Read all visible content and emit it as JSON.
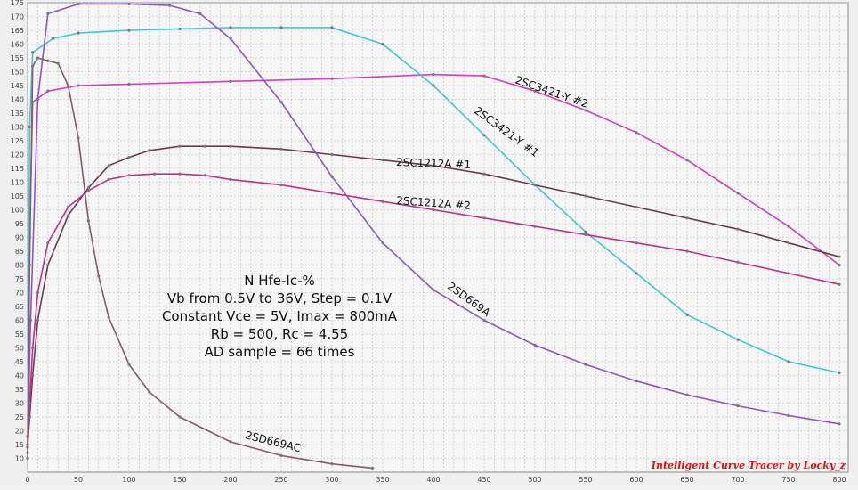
{
  "chart_data": {
    "type": "line",
    "title": "",
    "xlabel": "",
    "ylabel": "",
    "xlim": [
      0,
      800
    ],
    "ylim": [
      5,
      175
    ],
    "x_ticks": [
      0,
      50,
      100,
      150,
      200,
      250,
      300,
      350,
      400,
      450,
      500,
      550,
      600,
      650,
      700,
      750,
      800
    ],
    "y_ticks": [
      10,
      15,
      20,
      25,
      30,
      35,
      40,
      45,
      50,
      55,
      60,
      65,
      70,
      75,
      80,
      85,
      90,
      95,
      100,
      105,
      110,
      115,
      120,
      125,
      130,
      135,
      140,
      145,
      150,
      155,
      160,
      165,
      170,
      175
    ],
    "grid": true,
    "annotation_lines": [
      "N Hfe-Ic-%",
      "Vb from 0.5V to 36V, Step = 0.1V",
      "Constant Vce = 5V, Imax = 800mA",
      "Rb = 500, Rc = 4.55",
      "AD sample = 66 times"
    ],
    "credit": "Intelligent Curve Tracer by Locky_z",
    "series": [
      {
        "name": "2SC3421-Y #2",
        "color": "#d63dc4",
        "x": [
          0,
          2,
          5,
          20,
          50,
          100,
          200,
          300,
          400,
          450,
          500,
          550,
          600,
          650,
          700,
          750,
          800
        ],
        "values": [
          12,
          90,
          139,
          143,
          145,
          145.5,
          146.5,
          147.5,
          149,
          148.5,
          143,
          136,
          128,
          118,
          106,
          94,
          80
        ]
      },
      {
        "name": "2SC3421-Y #1",
        "color": "#3ec8d8",
        "x": [
          0,
          2,
          5,
          25,
          50,
          100,
          150,
          200,
          250,
          300,
          350,
          400,
          450,
          500,
          550,
          600,
          650,
          700,
          750,
          800
        ],
        "values": [
          18,
          130,
          157,
          162,
          164,
          165,
          165.5,
          166,
          166,
          166,
          160,
          145,
          127,
          109,
          92,
          77,
          62,
          53,
          45,
          41
        ]
      },
      {
        "name": "2SC1212A #1",
        "color": "#6a3a50",
        "x": [
          0,
          2,
          5,
          10,
          20,
          40,
          60,
          80,
          100,
          120,
          150,
          175,
          200,
          250,
          300,
          350,
          400,
          450,
          500,
          550,
          600,
          650,
          700,
          750,
          800
        ],
        "values": [
          14,
          25,
          40,
          60,
          80,
          98,
          108,
          116,
          119,
          121.5,
          123,
          123,
          123,
          122,
          120,
          118,
          116,
          113,
          109,
          105,
          101,
          97,
          93,
          88,
          83
        ]
      },
      {
        "name": "2SC1212A #2",
        "color": "#c0308c",
        "x": [
          0,
          2,
          5,
          10,
          20,
          40,
          60,
          80,
          100,
          125,
          150,
          175,
          200,
          250,
          300,
          350,
          400,
          450,
          500,
          550,
          600,
          650,
          700,
          750,
          800
        ],
        "values": [
          15,
          30,
          50,
          70,
          88,
          101,
          107,
          111,
          112.5,
          113,
          113,
          112.5,
          111,
          109,
          106,
          103,
          100,
          97,
          94,
          91,
          88,
          85,
          81,
          77,
          73
        ]
      },
      {
        "name": "2SD669A",
        "color": "#8f55c7",
        "x": [
          0,
          3,
          10,
          20,
          50,
          100,
          140,
          170,
          200,
          250,
          300,
          350,
          400,
          450,
          500,
          550,
          600,
          650,
          700,
          750,
          800
        ],
        "values": [
          15,
          60,
          140,
          171,
          174.5,
          174.5,
          174,
          171,
          162,
          139,
          112,
          88,
          71,
          60,
          51,
          44,
          38,
          33,
          29,
          25.5,
          22.5
        ]
      },
      {
        "name": "2SD669AC",
        "color": "#8a5a66",
        "x": [
          0,
          2,
          5,
          10,
          20,
          30,
          40,
          50,
          60,
          70,
          80,
          100,
          120,
          150,
          200,
          250,
          300,
          340
        ],
        "values": [
          10,
          80,
          152,
          155,
          154,
          153,
          145,
          126,
          96,
          76,
          61,
          44,
          34,
          25,
          16,
          11,
          8,
          6.5
        ]
      }
    ],
    "series_labels": [
      {
        "text": "2SC3421-Y #2",
        "series": "2SC3421-Y #2"
      },
      {
        "text": "2SC3421-Y #1",
        "series": "2SC3421-Y #1"
      },
      {
        "text": "2SC1212A #1",
        "series": "2SC1212A #1"
      },
      {
        "text": "2SC1212A #2",
        "series": "2SC1212A #2"
      },
      {
        "text": "2SD669A",
        "series": "2SD669A"
      },
      {
        "text": "2SD669AC",
        "series": "2SD669AC"
      }
    ]
  }
}
